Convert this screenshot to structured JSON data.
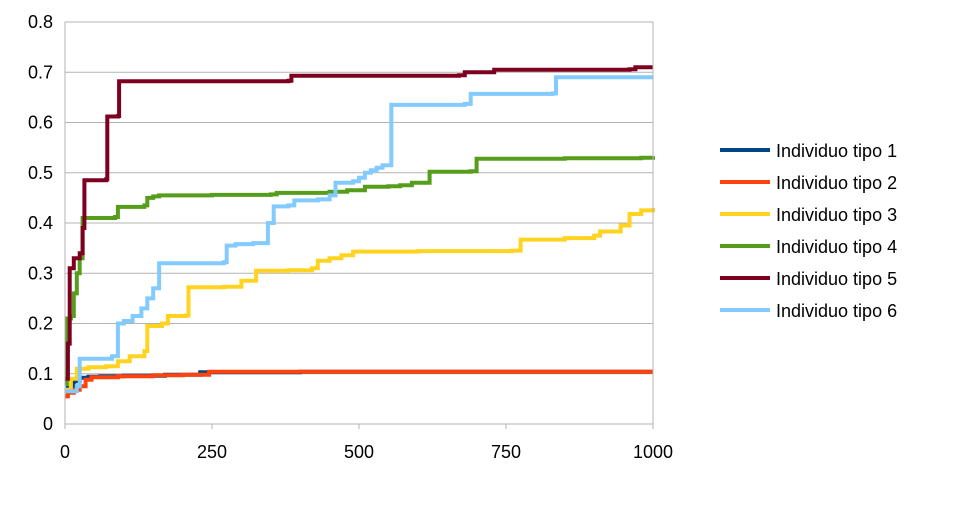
{
  "chart_data": {
    "type": "line",
    "title": "",
    "xlabel": "",
    "ylabel": "",
    "xlim": [
      0,
      1000
    ],
    "ylim": [
      0,
      0.8
    ],
    "x_ticks": [
      0,
      250,
      500,
      750,
      1000
    ],
    "y_ticks": [
      0,
      0.1,
      0.2,
      0.3,
      0.4,
      0.5,
      0.6,
      0.7,
      0.8
    ],
    "x_tick_labels": [
      "0",
      "250",
      "500",
      "750",
      "1000"
    ],
    "y_tick_labels": [
      "0",
      "0.1",
      "0.2",
      "0.3",
      "0.4",
      "0.5",
      "0.6",
      "0.7",
      "0.8"
    ],
    "grid": "horizontal",
    "legend_position": "right",
    "series": [
      {
        "name": "Individuo tipo 1",
        "color": "#004586",
        "points": [
          [
            0,
            0.065
          ],
          [
            5,
            0.072
          ],
          [
            15,
            0.085
          ],
          [
            25,
            0.092
          ],
          [
            40,
            0.094
          ],
          [
            60,
            0.095
          ],
          [
            100,
            0.096
          ],
          [
            170,
            0.098
          ],
          [
            230,
            0.103
          ],
          [
            400,
            0.104
          ],
          [
            1000,
            0.104
          ]
        ]
      },
      {
        "name": "Individuo tipo 2",
        "color": "#ff420e",
        "points": [
          [
            0,
            0.055
          ],
          [
            5,
            0.062
          ],
          [
            15,
            0.068
          ],
          [
            25,
            0.075
          ],
          [
            35,
            0.088
          ],
          [
            45,
            0.093
          ],
          [
            90,
            0.095
          ],
          [
            150,
            0.097
          ],
          [
            200,
            0.098
          ],
          [
            245,
            0.104
          ],
          [
            600,
            0.104
          ],
          [
            1000,
            0.104
          ]
        ]
      },
      {
        "name": "Individuo tipo 3",
        "color": "#ffd320",
        "points": [
          [
            0,
            0.068
          ],
          [
            10,
            0.09
          ],
          [
            20,
            0.11
          ],
          [
            40,
            0.113
          ],
          [
            70,
            0.115
          ],
          [
            90,
            0.125
          ],
          [
            110,
            0.135
          ],
          [
            135,
            0.145
          ],
          [
            140,
            0.195
          ],
          [
            165,
            0.2
          ],
          [
            175,
            0.215
          ],
          [
            205,
            0.216
          ],
          [
            210,
            0.272
          ],
          [
            270,
            0.273
          ],
          [
            300,
            0.285
          ],
          [
            325,
            0.305
          ],
          [
            380,
            0.306
          ],
          [
            420,
            0.31
          ],
          [
            430,
            0.325
          ],
          [
            450,
            0.33
          ],
          [
            470,
            0.336
          ],
          [
            490,
            0.343
          ],
          [
            600,
            0.344
          ],
          [
            760,
            0.345
          ],
          [
            775,
            0.367
          ],
          [
            850,
            0.37
          ],
          [
            900,
            0.375
          ],
          [
            910,
            0.383
          ],
          [
            945,
            0.395
          ],
          [
            960,
            0.418
          ],
          [
            980,
            0.425
          ],
          [
            1000,
            0.43
          ]
        ]
      },
      {
        "name": "Individuo tipo 4",
        "color": "#579d1c",
        "points": [
          [
            0,
            0.08
          ],
          [
            3,
            0.21
          ],
          [
            10,
            0.215
          ],
          [
            15,
            0.26
          ],
          [
            20,
            0.3
          ],
          [
            25,
            0.33
          ],
          [
            30,
            0.41
          ],
          [
            85,
            0.412
          ],
          [
            90,
            0.432
          ],
          [
            135,
            0.435
          ],
          [
            140,
            0.45
          ],
          [
            150,
            0.453
          ],
          [
            160,
            0.455
          ],
          [
            250,
            0.456
          ],
          [
            350,
            0.457
          ],
          [
            360,
            0.46
          ],
          [
            450,
            0.462
          ],
          [
            480,
            0.465
          ],
          [
            510,
            0.472
          ],
          [
            550,
            0.473
          ],
          [
            570,
            0.475
          ],
          [
            590,
            0.48
          ],
          [
            620,
            0.502
          ],
          [
            690,
            0.503
          ],
          [
            700,
            0.528
          ],
          [
            850,
            0.529
          ],
          [
            980,
            0.53
          ],
          [
            1000,
            0.533
          ]
        ]
      },
      {
        "name": "Individuo tipo 5",
        "color": "#7e0021",
        "points": [
          [
            0,
            0.09
          ],
          [
            5,
            0.16
          ],
          [
            8,
            0.31
          ],
          [
            15,
            0.33
          ],
          [
            25,
            0.34
          ],
          [
            30,
            0.39
          ],
          [
            33,
            0.485
          ],
          [
            70,
            0.487
          ],
          [
            72,
            0.612
          ],
          [
            90,
            0.613
          ],
          [
            92,
            0.682
          ],
          [
            380,
            0.683
          ],
          [
            385,
            0.693
          ],
          [
            670,
            0.694
          ],
          [
            680,
            0.7
          ],
          [
            730,
            0.705
          ],
          [
            960,
            0.706
          ],
          [
            970,
            0.71
          ],
          [
            1000,
            0.71
          ]
        ]
      },
      {
        "name": "Individuo tipo 6",
        "color": "#83caff",
        "points": [
          [
            0,
            0.065
          ],
          [
            20,
            0.075
          ],
          [
            25,
            0.13
          ],
          [
            80,
            0.135
          ],
          [
            90,
            0.2
          ],
          [
            100,
            0.205
          ],
          [
            115,
            0.215
          ],
          [
            130,
            0.23
          ],
          [
            140,
            0.25
          ],
          [
            150,
            0.27
          ],
          [
            160,
            0.32
          ],
          [
            270,
            0.322
          ],
          [
            275,
            0.355
          ],
          [
            290,
            0.358
          ],
          [
            320,
            0.36
          ],
          [
            345,
            0.4
          ],
          [
            355,
            0.433
          ],
          [
            380,
            0.435
          ],
          [
            390,
            0.445
          ],
          [
            430,
            0.447
          ],
          [
            450,
            0.455
          ],
          [
            460,
            0.48
          ],
          [
            490,
            0.483
          ],
          [
            500,
            0.49
          ],
          [
            510,
            0.5
          ],
          [
            520,
            0.505
          ],
          [
            530,
            0.51
          ],
          [
            540,
            0.515
          ],
          [
            555,
            0.635
          ],
          [
            680,
            0.637
          ],
          [
            690,
            0.657
          ],
          [
            830,
            0.658
          ],
          [
            835,
            0.69
          ],
          [
            1000,
            0.69
          ]
        ]
      }
    ]
  }
}
